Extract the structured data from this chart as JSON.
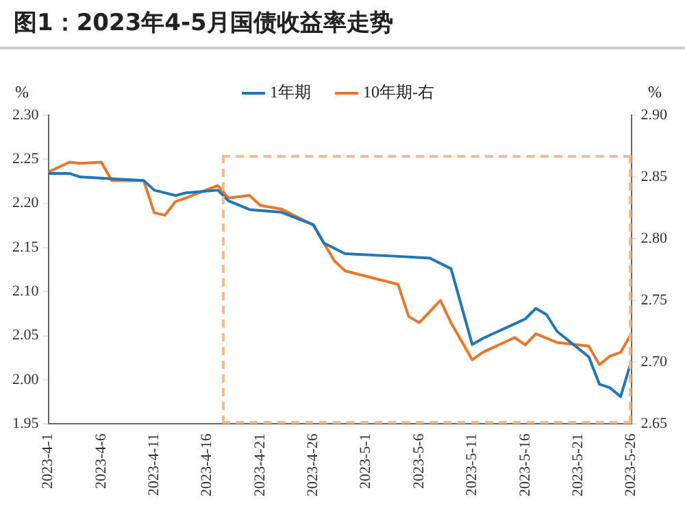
{
  "chart_data": {
    "type": "line",
    "title": "图1：2023年4-5月国债收益率走势",
    "ylabel": "%",
    "y2label": "%",
    "xlim": [
      "2023-04-01",
      "2023-05-26"
    ],
    "xticks": [
      {
        "value": "2023-04-01",
        "label": "2023-4-1"
      },
      {
        "value": "2023-04-06",
        "label": "2023-4-6"
      },
      {
        "value": "2023-04-11",
        "label": "2023-4-11"
      },
      {
        "value": "2023-04-16",
        "label": "2023-4-16"
      },
      {
        "value": "2023-04-21",
        "label": "2023-4-21"
      },
      {
        "value": "2023-04-26",
        "label": "2023-4-26"
      },
      {
        "value": "2023-05-01",
        "label": "2023-5-1"
      },
      {
        "value": "2023-05-06",
        "label": "2023-5-6"
      },
      {
        "value": "2023-05-11",
        "label": "2023-5-11"
      },
      {
        "value": "2023-05-16",
        "label": "2023-5-16"
      },
      {
        "value": "2023-05-21",
        "label": "2023-5-21"
      },
      {
        "value": "2023-05-26",
        "label": "2023-5-26"
      }
    ],
    "ylim": [
      1.95,
      2.3
    ],
    "yticks": [
      {
        "value": 1.95,
        "label": "1.95"
      },
      {
        "value": 2.0,
        "label": "2.00"
      },
      {
        "value": 2.05,
        "label": "2.05"
      },
      {
        "value": 2.1,
        "label": "2.10"
      },
      {
        "value": 2.15,
        "label": "2.15"
      },
      {
        "value": 2.2,
        "label": "2.20"
      },
      {
        "value": 2.25,
        "label": "2.25"
      },
      {
        "value": 2.3,
        "label": "2.30"
      }
    ],
    "y2lim": [
      2.65,
      2.9
    ],
    "y2ticks": [
      {
        "value": 2.65,
        "label": "2.65"
      },
      {
        "value": 2.7,
        "label": "2.70"
      },
      {
        "value": 2.75,
        "label": "2.75"
      },
      {
        "value": 2.8,
        "label": "2.80"
      },
      {
        "value": 2.85,
        "label": "2.85"
      },
      {
        "value": 2.9,
        "label": "2.90"
      }
    ],
    "grid": false,
    "legend": "top",
    "marker": "none",
    "line_style": "solid",
    "series": [
      {
        "name": "1年期",
        "color": "#1f77b9",
        "x": [
          "2023-04-01",
          "2023-04-03",
          "2023-04-04",
          "2023-04-07",
          "2023-04-10",
          "2023-04-11",
          "2023-04-13",
          "2023-04-14",
          "2023-04-17",
          "2023-04-18",
          "2023-04-20",
          "2023-04-23",
          "2023-04-26",
          "2023-04-27",
          "2023-04-29",
          "2023-05-04",
          "2023-05-07",
          "2023-05-09",
          "2023-05-11",
          "2023-05-12",
          "2023-05-16",
          "2023-05-17",
          "2023-05-18",
          "2023-05-19",
          "2023-05-22",
          "2023-05-23",
          "2023-05-24",
          "2023-05-25",
          "2023-05-26"
        ],
        "values": [
          2.234,
          2.234,
          2.23,
          2.228,
          2.226,
          2.215,
          2.209,
          2.212,
          2.215,
          2.203,
          2.193,
          2.19,
          2.176,
          2.155,
          2.143,
          2.14,
          2.138,
          2.126,
          2.04,
          2.047,
          2.069,
          2.081,
          2.074,
          2.055,
          2.026,
          1.995,
          1.991,
          1.981,
          2.021
        ]
      },
      {
        "name": "10年期-右",
        "color": "#e8762b",
        "axis": "y2",
        "x": [
          "2023-04-01",
          "2023-04-03",
          "2023-04-04",
          "2023-04-06",
          "2023-04-07",
          "2023-04-10",
          "2023-04-11",
          "2023-04-12",
          "2023-04-13",
          "2023-04-14",
          "2023-04-17",
          "2023-04-18",
          "2023-04-20",
          "2023-04-21",
          "2023-04-23",
          "2023-04-26",
          "2023-04-28",
          "2023-04-29",
          "2023-05-04",
          "2023-05-05",
          "2023-05-06",
          "2023-05-08",
          "2023-05-09",
          "2023-05-11",
          "2023-05-12",
          "2023-05-15",
          "2023-05-16",
          "2023-05-17",
          "2023-05-19",
          "2023-05-22",
          "2023-05-23",
          "2023-05-24",
          "2023-05-25",
          "2023-05-26"
        ],
        "values": [
          2.854,
          2.862,
          2.861,
          2.862,
          2.847,
          2.847,
          2.821,
          2.819,
          2.83,
          2.833,
          2.843,
          2.833,
          2.835,
          2.827,
          2.824,
          2.811,
          2.782,
          2.774,
          2.763,
          2.737,
          2.732,
          2.75,
          2.732,
          2.702,
          2.708,
          2.72,
          2.714,
          2.723,
          2.716,
          2.713,
          2.698,
          2.705,
          2.708,
          2.723
        ]
      }
    ]
  }
}
